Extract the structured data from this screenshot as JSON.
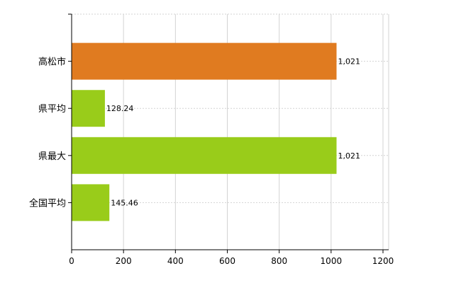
{
  "chart_data": {
    "type": "bar",
    "orientation": "horizontal",
    "categories": [
      "高松市",
      "県平均",
      "県最大",
      "全国平均"
    ],
    "values": [
      1021,
      128.24,
      1021,
      145.46
    ],
    "data_labels": [
      "1,021",
      "128.24",
      "1,021",
      "145.46"
    ],
    "bar_colors": [
      "#e07b20",
      "#99cc1a",
      "#99cc1a",
      "#99cc1a"
    ],
    "xlim": [
      0,
      1200
    ],
    "x_ticks": [
      0,
      200,
      400,
      600,
      800,
      1000,
      1200
    ],
    "x_tick_labels": [
      "0",
      "200",
      "400",
      "600",
      "800",
      "1000",
      "1200"
    ],
    "grid": true,
    "title": "",
    "xlabel": "",
    "ylabel": ""
  }
}
